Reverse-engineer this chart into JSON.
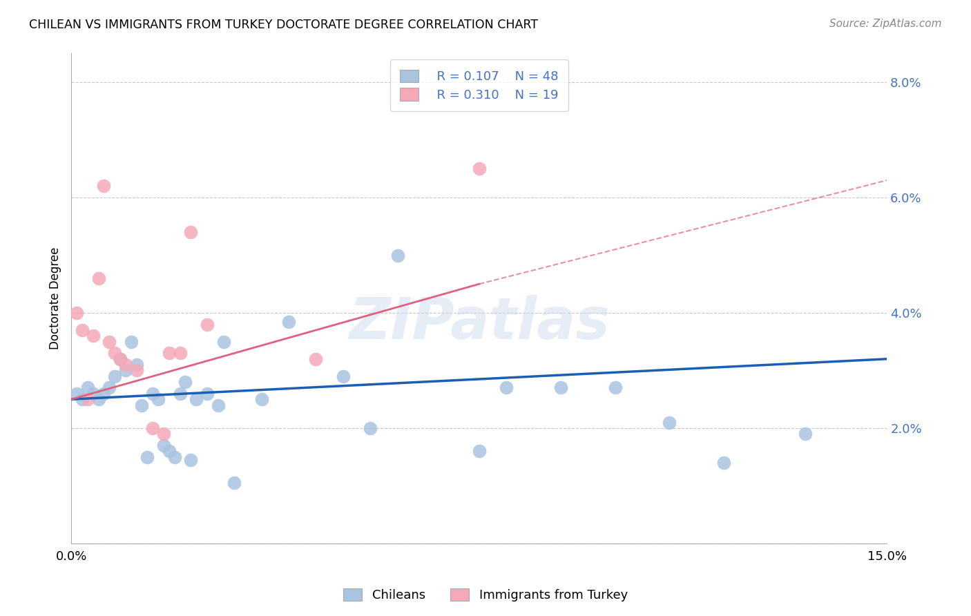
{
  "title": "CHILEAN VS IMMIGRANTS FROM TURKEY DOCTORATE DEGREE CORRELATION CHART",
  "source": "Source: ZipAtlas.com",
  "ylabel": "Doctorate Degree",
  "xlim": [
    0.0,
    15.0
  ],
  "ylim": [
    0.0,
    8.5
  ],
  "yticks": [
    0.0,
    2.0,
    4.0,
    6.0,
    8.0
  ],
  "ytick_labels": [
    "",
    "2.0%",
    "4.0%",
    "6.0%",
    "8.0%"
  ],
  "chilean_color": "#a8c4e0",
  "turkey_color": "#f4a8b8",
  "line_blue": "#1a5fb4",
  "line_pink": "#e06080",
  "watermark": "ZIPatlas",
  "chileans_x": [
    0.1,
    0.2,
    0.3,
    0.4,
    0.5,
    0.6,
    0.7,
    0.8,
    0.9,
    1.0,
    1.1,
    1.2,
    1.3,
    1.4,
    1.5,
    1.6,
    1.7,
    1.8,
    1.9,
    2.0,
    2.1,
    2.2,
    2.3,
    2.5,
    2.7,
    2.8,
    3.0,
    3.5,
    4.0,
    5.0,
    5.5,
    6.0,
    7.5,
    8.0,
    9.0,
    10.0,
    11.0,
    12.0,
    13.5
  ],
  "chileans_y": [
    2.6,
    2.5,
    2.7,
    2.6,
    2.5,
    2.6,
    2.7,
    2.9,
    3.2,
    3.0,
    3.5,
    3.1,
    2.4,
    1.5,
    2.6,
    2.5,
    1.7,
    1.6,
    1.5,
    2.6,
    2.8,
    1.45,
    2.5,
    2.6,
    2.4,
    3.5,
    1.05,
    2.5,
    3.85,
    2.9,
    2.0,
    5.0,
    1.6,
    2.7,
    2.7,
    2.7,
    2.1,
    1.4,
    1.9
  ],
  "turkey_x": [
    0.1,
    0.2,
    0.3,
    0.4,
    0.5,
    0.6,
    0.7,
    0.8,
    0.9,
    1.0,
    1.2,
    1.5,
    1.7,
    1.8,
    2.0,
    2.2,
    2.5,
    4.5,
    7.5
  ],
  "turkey_y": [
    4.0,
    3.7,
    2.5,
    3.6,
    4.6,
    6.2,
    3.5,
    3.3,
    3.2,
    3.1,
    3.0,
    2.0,
    1.9,
    3.3,
    3.3,
    5.4,
    3.8,
    3.2,
    6.5
  ],
  "blue_line_x0": 0.0,
  "blue_line_x1": 15.0,
  "blue_line_y0": 2.5,
  "blue_line_y1": 3.2,
  "pink_line_x0": 0.0,
  "pink_line_solid_x1": 7.5,
  "pink_line_x1": 15.0,
  "pink_line_y0": 2.5,
  "pink_line_solid_y1": 4.5,
  "pink_line_y1": 6.3
}
